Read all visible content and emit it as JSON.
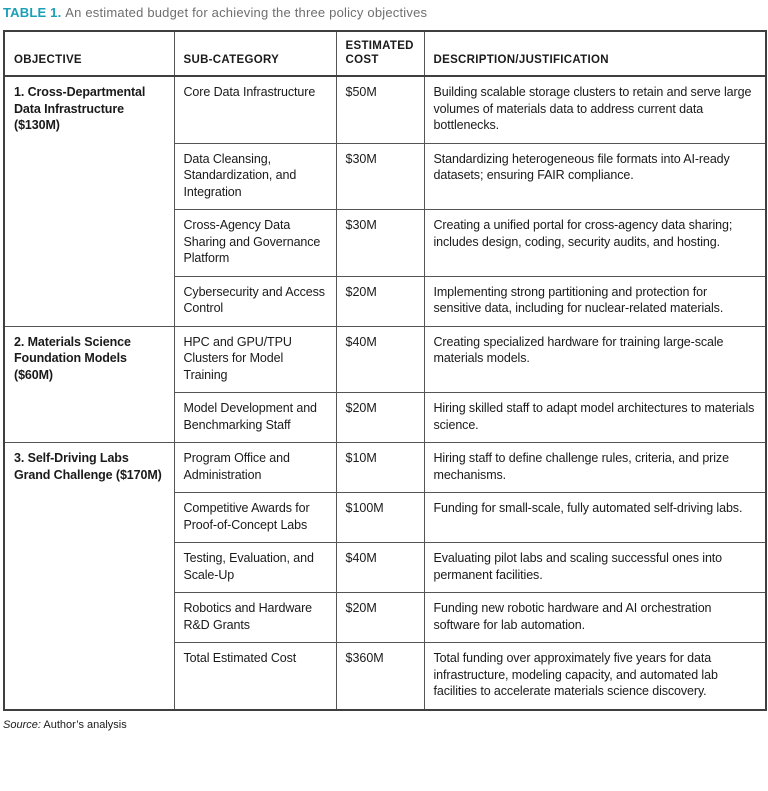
{
  "title": {
    "label": "TABLE 1.",
    "text": "An estimated budget for achieving the three policy objectives"
  },
  "colors": {
    "accent_teal": "#1b9fb6",
    "subtitle_gray": "#6e6e6e",
    "border_dark": "#3f3f3f",
    "border_inner": "#555555",
    "text": "#1a1a1a"
  },
  "table": {
    "headers": [
      "OBJECTIVE",
      "SUB-CATEGORY",
      "ESTIMATED COST",
      "DESCRIPTION/JUSTIFICATION"
    ],
    "groups": [
      {
        "objective": "1. Cross-Departmental Data Infrastructure ($130M)",
        "rows": [
          {
            "sub_category": "Core Data Infrastructure",
            "cost": "$50M",
            "description": "Building scalable storage clusters to retain and serve large volumes of materials data to address current data bottlenecks."
          },
          {
            "sub_category": "Data Cleansing, Standardization, and Integration",
            "cost": "$30M",
            "description": "Standardizing heterogeneous file formats into AI-ready datasets; ensuring FAIR compliance."
          },
          {
            "sub_category": "Cross-Agency Data Sharing and Governance Platform",
            "cost": "$30M",
            "description": "Creating a unified portal for cross-agency data sharing; includes design, coding, security audits, and hosting."
          },
          {
            "sub_category": "Cybersecurity and Access Control",
            "cost": "$20M",
            "description": "Implementing strong partitioning and protection for sensitive data, including for nuclear-related materials."
          }
        ]
      },
      {
        "objective": "2. Materials Science Foundation Models ($60M)",
        "rows": [
          {
            "sub_category": "HPC and GPU/TPU Clusters for Model Training",
            "cost": "$40M",
            "description": "Creating specialized hardware for training large-scale materials models."
          },
          {
            "sub_category": "Model Development and Benchmarking Staff",
            "cost": "$20M",
            "description": "Hiring skilled staff to adapt model architectures to materials science."
          }
        ]
      },
      {
        "objective": "3. Self-Driving Labs Grand Challenge ($170M)",
        "rows": [
          {
            "sub_category": "Program Office and Administration",
            "cost": "$10M",
            "description": "Hiring staff to define challenge rules, criteria, and prize mechanisms."
          },
          {
            "sub_category": "Competitive Awards for Proof-of-Concept Labs",
            "cost": "$100M",
            "description": "Funding for small-scale, fully automated self-driving labs."
          },
          {
            "sub_category": "Testing, Evaluation, and Scale-Up",
            "cost": "$40M",
            "description": "Evaluating pilot labs and scaling successful ones into permanent facilities."
          },
          {
            "sub_category": "Robotics and Hardware R&D Grants",
            "cost": "$20M",
            "description": "Funding new robotic hardware and AI orchestration software for lab automation."
          },
          {
            "sub_category": "Total Estimated Cost",
            "cost": "$360M",
            "description": "Total funding over approximately five years for data infrastructure, modeling capacity, and automated lab facilities to accelerate materials science discovery."
          }
        ]
      }
    ]
  },
  "source": {
    "label": "Source:",
    "text": "Author’s analysis"
  }
}
